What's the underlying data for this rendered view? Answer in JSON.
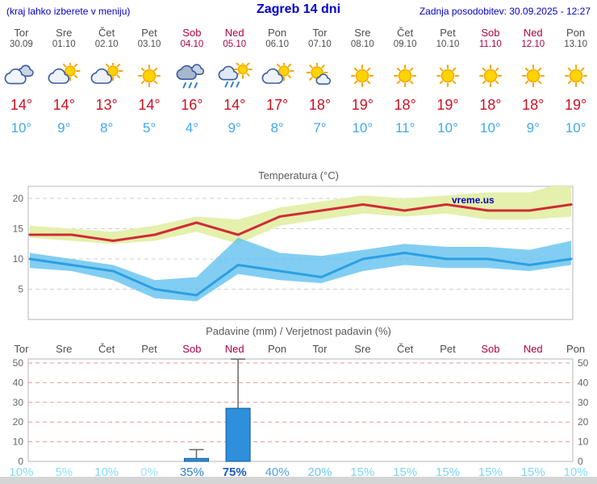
{
  "header": {
    "left_note": "(kraj lahko izberete v meniju)",
    "title": "Zagreb 14 dni",
    "updated": "Zadnja posodobitev: 30.09.2025 - 12:27"
  },
  "watermark": "vreme.us",
  "colors": {
    "header_blue": "#0000cc",
    "weekend_red": "#b00045",
    "high_temp_red": "#cc1122",
    "low_temp_blue": "#41a8f0",
    "temp_line_max": "#d12b35",
    "temp_line_min": "#2d9fe2",
    "temp_band_max": "#e4f0ac",
    "temp_band_min": "#5fc0ee",
    "precip_bar": "#2e8fdb",
    "precip_grid": "#e39a9a"
  },
  "days": [
    {
      "name": "Tor",
      "date": "30.09",
      "weekend": false,
      "icon": "cloudy",
      "high": "14°",
      "low": "10°"
    },
    {
      "name": "Sre",
      "date": "01.10",
      "weekend": false,
      "icon": "partly-cloudy",
      "high": "14°",
      "low": "9°"
    },
    {
      "name": "Čet",
      "date": "02.10",
      "weekend": false,
      "icon": "partly-cloudy",
      "high": "13°",
      "low": "8°"
    },
    {
      "name": "Pet",
      "date": "03.10",
      "weekend": false,
      "icon": "sunny",
      "high": "14°",
      "low": "5°"
    },
    {
      "name": "Sob",
      "date": "04.10",
      "weekend": true,
      "icon": "rain",
      "high": "16°",
      "low": "4°"
    },
    {
      "name": "Ned",
      "date": "05.10",
      "weekend": true,
      "icon": "sun-showers",
      "high": "14°",
      "low": "9°"
    },
    {
      "name": "Pon",
      "date": "06.10",
      "weekend": false,
      "icon": "partly-cloudy",
      "high": "17°",
      "low": "8°"
    },
    {
      "name": "Tor",
      "date": "07.10",
      "weekend": false,
      "icon": "mostly-sunny",
      "high": "18°",
      "low": "7°"
    },
    {
      "name": "Sre",
      "date": "08.10",
      "weekend": false,
      "icon": "sunny",
      "high": "19°",
      "low": "10°"
    },
    {
      "name": "Čet",
      "date": "09.10",
      "weekend": false,
      "icon": "sunny",
      "high": "18°",
      "low": "11°"
    },
    {
      "name": "Pet",
      "date": "10.10",
      "weekend": false,
      "icon": "sunny",
      "high": "19°",
      "low": "10°"
    },
    {
      "name": "Sob",
      "date": "11.10",
      "weekend": true,
      "icon": "sunny",
      "high": "18°",
      "low": "10°"
    },
    {
      "name": "Ned",
      "date": "12.10",
      "weekend": true,
      "icon": "sunny",
      "high": "18°",
      "low": "9°"
    },
    {
      "name": "Pon",
      "date": "13.10",
      "weekend": false,
      "icon": "sunny",
      "high": "19°",
      "low": "10°"
    }
  ],
  "chart_data": [
    {
      "type": "line",
      "title": "Temperatura (°C)",
      "x_categories": [
        "Tor 30.09",
        "Sre 01.10",
        "Čet 02.10",
        "Pet 03.10",
        "Sob 04.10",
        "Ned 05.10",
        "Pon 06.10",
        "Tor 07.10",
        "Sre 08.10",
        "Čet 09.10",
        "Pet 10.10",
        "Sob 11.10",
        "Ned 12.10",
        "Pon 13.10"
      ],
      "ylim": [
        0,
        22
      ],
      "yticks": [
        5,
        10,
        15,
        20
      ],
      "grid": true,
      "watermark": "vreme.us",
      "series": [
        {
          "name": "max-temperature-band",
          "type": "band",
          "fill": "#e4f0ac",
          "upper": [
            15.5,
            15,
            14.5,
            15.5,
            17,
            16.5,
            18.5,
            19.5,
            20.5,
            20,
            20.5,
            21,
            21,
            23
          ],
          "lower": [
            13.5,
            13,
            12.5,
            13,
            14.5,
            12.5,
            15.5,
            16.5,
            17.5,
            17,
            17.5,
            16.5,
            16.5,
            17
          ]
        },
        {
          "name": "min-temperature-band",
          "type": "band",
          "fill": "#5fc0ee",
          "upper": [
            11,
            10,
            9,
            6.5,
            7,
            13.5,
            11,
            10.5,
            11.5,
            12.5,
            12,
            12,
            11.5,
            13
          ],
          "lower": [
            8.5,
            8,
            6.5,
            3.5,
            3,
            7.5,
            6.5,
            6,
            8,
            9,
            8.5,
            8.5,
            8,
            9
          ]
        },
        {
          "name": "max-temperature",
          "type": "line",
          "color": "#d12b35",
          "values": [
            14,
            14,
            13,
            14,
            16,
            14,
            17,
            18,
            19,
            18,
            19,
            18,
            18,
            19
          ]
        },
        {
          "name": "min-temperature",
          "type": "line",
          "color": "#2d9fe2",
          "values": [
            10,
            9,
            8,
            5,
            4,
            9,
            8,
            7,
            10,
            11,
            10,
            10,
            9,
            10
          ]
        }
      ]
    },
    {
      "type": "bar",
      "title": "Padavine (mm) / Verjetnost padavin (%)",
      "categories": [
        "Tor",
        "Sre",
        "Čet",
        "Pet",
        "Sob",
        "Ned",
        "Pon",
        "Tor",
        "Sre",
        "Čet",
        "Pet",
        "Sob",
        "Ned",
        "Pon"
      ],
      "values_mm": [
        0,
        0,
        0,
        0,
        1.5,
        27,
        0,
        0,
        0,
        0,
        0,
        0,
        0,
        0
      ],
      "whisker_max_mm": [
        0,
        0,
        0,
        0,
        6,
        52,
        0,
        0,
        0,
        0,
        0,
        0,
        0,
        0
      ],
      "ylim": [
        0,
        52
      ],
      "yticks": [
        0,
        10,
        20,
        30,
        40,
        50
      ],
      "grid": true,
      "probabilities": [
        {
          "label": "10%",
          "color": "#82dbf8",
          "bold": false
        },
        {
          "label": "5%",
          "color": "#8fe0fa",
          "bold": false
        },
        {
          "label": "10%",
          "color": "#82dbf8",
          "bold": false
        },
        {
          "label": "0%",
          "color": "#9ae4fb",
          "bold": false
        },
        {
          "label": "35%",
          "color": "#2b7fd0",
          "bold": false
        },
        {
          "label": "75%",
          "color": "#1a5bc4",
          "bold": true
        },
        {
          "label": "40%",
          "color": "#4aa3e4",
          "bold": false
        },
        {
          "label": "20%",
          "color": "#6cc6f0",
          "bold": false
        },
        {
          "label": "15%",
          "color": "#7dd4f6",
          "bold": false
        },
        {
          "label": "15%",
          "color": "#7dd4f6",
          "bold": false
        },
        {
          "label": "15%",
          "color": "#7dd4f6",
          "bold": false
        },
        {
          "label": "15%",
          "color": "#7dd4f6",
          "bold": false
        },
        {
          "label": "15%",
          "color": "#7dd4f6",
          "bold": false
        },
        {
          "label": "10%",
          "color": "#82dbf8",
          "bold": false
        }
      ]
    }
  ]
}
